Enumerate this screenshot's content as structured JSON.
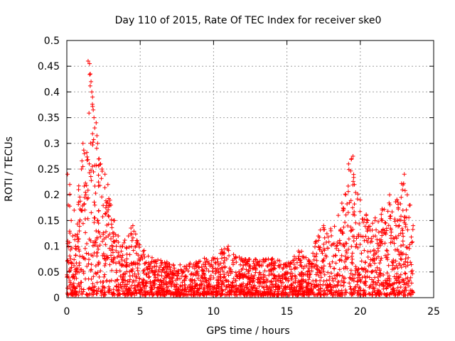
{
  "chart_data": {
    "type": "scatter",
    "title": "Day 110 of 2015, Rate Of TEC Index for receiver ske0",
    "xlabel": "GPS time / hours",
    "ylabel": "ROTI / TECUs",
    "xlim": [
      0,
      25
    ],
    "ylim": [
      0,
      0.5
    ],
    "xticks": [
      "0",
      "5",
      "10",
      "15",
      "20",
      "25"
    ],
    "yticks": [
      "0",
      "0.05",
      "0.1",
      "0.15",
      "0.2",
      "0.25",
      "0.3",
      "0.35",
      "0.4",
      "0.45",
      "0.5"
    ],
    "grid": true,
    "marker": "+",
    "color": "#ff0000",
    "series": [
      {
        "name": "ROTI",
        "points": [
          [
            0.05,
            0.24
          ],
          [
            0.1,
            0.18
          ],
          [
            0.2,
            0.22
          ],
          [
            0.3,
            0.15
          ],
          [
            0.4,
            0.12
          ],
          [
            0.5,
            0.17
          ],
          [
            0.6,
            0.1
          ],
          [
            0.8,
            0.21
          ],
          [
            1.0,
            0.25
          ],
          [
            1.1,
            0.3
          ],
          [
            1.2,
            0.28
          ],
          [
            1.3,
            0.2
          ],
          [
            1.45,
            0.46
          ],
          [
            1.55,
            0.455
          ],
          [
            1.6,
            0.435
          ],
          [
            1.65,
            0.42
          ],
          [
            1.7,
            0.4
          ],
          [
            1.75,
            0.39
          ],
          [
            1.8,
            0.365
          ],
          [
            1.85,
            0.35
          ],
          [
            1.9,
            0.33
          ],
          [
            2.0,
            0.34
          ],
          [
            2.05,
            0.315
          ],
          [
            2.1,
            0.3
          ],
          [
            2.2,
            0.27
          ],
          [
            2.3,
            0.26
          ],
          [
            2.4,
            0.25
          ],
          [
            2.6,
            0.24
          ],
          [
            2.8,
            0.22
          ],
          [
            3.0,
            0.18
          ],
          [
            3.2,
            0.15
          ],
          [
            3.5,
            0.12
          ],
          [
            3.8,
            0.1
          ],
          [
            4.2,
            0.12
          ],
          [
            4.5,
            0.14
          ],
          [
            4.8,
            0.11
          ],
          [
            5.2,
            0.09
          ],
          [
            6.0,
            0.07
          ],
          [
            7.0,
            0.065
          ],
          [
            8.0,
            0.06
          ],
          [
            9.0,
            0.07
          ],
          [
            10.0,
            0.075
          ],
          [
            11.0,
            0.1
          ],
          [
            11.5,
            0.08
          ],
          [
            12.0,
            0.07
          ],
          [
            13.0,
            0.07
          ],
          [
            14.0,
            0.075
          ],
          [
            15.0,
            0.06
          ],
          [
            15.5,
            0.08
          ],
          [
            16.0,
            0.09
          ],
          [
            16.5,
            0.07
          ],
          [
            17.0,
            0.11
          ],
          [
            17.5,
            0.14
          ],
          [
            18.0,
            0.13
          ],
          [
            18.5,
            0.16
          ],
          [
            19.0,
            0.2
          ],
          [
            19.2,
            0.26
          ],
          [
            19.4,
            0.27
          ],
          [
            19.5,
            0.275
          ],
          [
            19.6,
            0.22
          ],
          [
            20.0,
            0.19
          ],
          [
            20.5,
            0.15
          ],
          [
            21.0,
            0.15
          ],
          [
            21.5,
            0.17
          ],
          [
            22.0,
            0.2
          ],
          [
            22.5,
            0.19
          ],
          [
            23.0,
            0.24
          ],
          [
            23.2,
            0.2
          ],
          [
            23.4,
            0.18
          ],
          [
            23.6,
            0.14
          ]
        ]
      }
    ]
  }
}
